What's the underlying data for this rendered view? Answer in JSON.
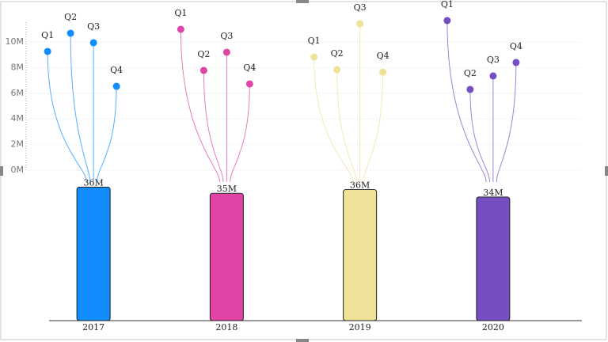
{
  "chart_data": {
    "type": "bar-lollipop",
    "categories": [
      "2017",
      "2018",
      "2019",
      "2020"
    ],
    "colors": [
      "#118dff",
      "#e044a7",
      "#f0e199",
      "#744ec2"
    ],
    "series": [
      {
        "name": "Total",
        "axis": "y2",
        "values": [
          36400000,
          34700000,
          35700000,
          33700000
        ],
        "value_labels": [
          "36M",
          "35M",
          "36M",
          "34M"
        ]
      }
    ],
    "quarters": {
      "names": [
        "Q1",
        "Q2",
        "Q3",
        "Q4"
      ],
      "values": [
        [
          9260000,
          10680000,
          9940000,
          6540000
        ],
        [
          10990000,
          7780000,
          9200000,
          6730000
        ],
        [
          8830000,
          7840000,
          11420000,
          7650000
        ],
        [
          11670000,
          6300000,
          7350000,
          8400000
        ]
      ]
    },
    "ylim": [
      0,
      12000000
    ],
    "yticks": [
      {
        "value": 0,
        "label": "0M"
      },
      {
        "value": 2000000,
        "label": "2M"
      },
      {
        "value": 4000000,
        "label": "4M"
      },
      {
        "value": 6000000,
        "label": "6M"
      },
      {
        "value": 8000000,
        "label": "8M"
      },
      {
        "value": 10000000,
        "label": "10M"
      }
    ],
    "y2lim": [
      0,
      41000000
    ],
    "grid": true
  }
}
